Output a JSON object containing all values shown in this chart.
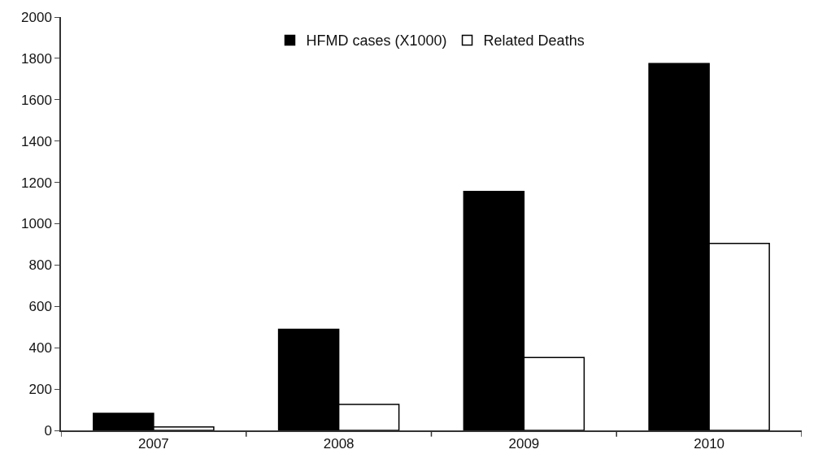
{
  "chart_data": {
    "type": "bar",
    "categories": [
      "2007",
      "2008",
      "2009",
      "2010"
    ],
    "series": [
      {
        "name": "HFMD cases (X1000)",
        "color": "#000000",
        "values": [
          83,
          489,
          1156,
          1775
        ]
      },
      {
        "name": "Related Deaths",
        "color": "#ffffff",
        "values": [
          17,
          126,
          353,
          905
        ]
      }
    ],
    "ylim": [
      0,
      2000
    ],
    "yticks": [
      0,
      200,
      400,
      600,
      800,
      1000,
      1200,
      1400,
      1600,
      1800,
      2000
    ],
    "grid": false,
    "legend": "top"
  }
}
